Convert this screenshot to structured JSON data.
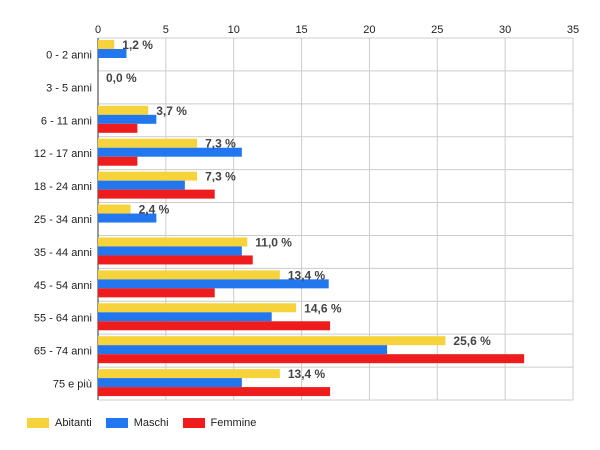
{
  "chart_data": {
    "type": "bar",
    "orientation": "horizontal",
    "categories": [
      "0 - 2 anni",
      "3 - 5 anni",
      "6 - 11 anni",
      "12 - 17 anni",
      "18 - 24 anni",
      "25 - 34 anni",
      "35 - 44 anni",
      "45 - 54 anni",
      "55 - 64 anni",
      "65 - 74 anni",
      "75 e più"
    ],
    "series": [
      {
        "name": "Abitanti",
        "color": "#f7d33b",
        "values": [
          1.2,
          0.0,
          3.7,
          7.3,
          7.3,
          2.4,
          11.0,
          13.4,
          14.6,
          25.6,
          13.4
        ]
      },
      {
        "name": "Maschi",
        "color": "#2277ee",
        "values": [
          2.1,
          0.0,
          4.3,
          10.6,
          6.4,
          4.3,
          10.6,
          17.0,
          12.8,
          21.3,
          10.6
        ]
      },
      {
        "name": "Femmine",
        "color": "#ee1c1c",
        "values": [
          0.0,
          0.0,
          2.9,
          2.9,
          8.6,
          0.0,
          11.4,
          8.6,
          17.1,
          31.4,
          17.1
        ]
      }
    ],
    "data_labels": [
      "1,2 %",
      "0,0 %",
      "3,7 %",
      "7,3 %",
      "7,3 %",
      "2,4 %",
      "11,0 %",
      "13,4 %",
      "14,6 %",
      "25,6 %",
      "13,4 %"
    ],
    "xlim": [
      0,
      35
    ],
    "xticks": [
      0,
      5,
      10,
      15,
      20,
      25,
      30,
      35
    ],
    "grid": true,
    "legend_position": "bottom-left"
  },
  "legend": {
    "items": [
      {
        "label": "Abitanti",
        "color": "#f7d33b"
      },
      {
        "label": "Maschi",
        "color": "#2277ee"
      },
      {
        "label": "Femmine",
        "color": "#ee1c1c"
      }
    ]
  }
}
